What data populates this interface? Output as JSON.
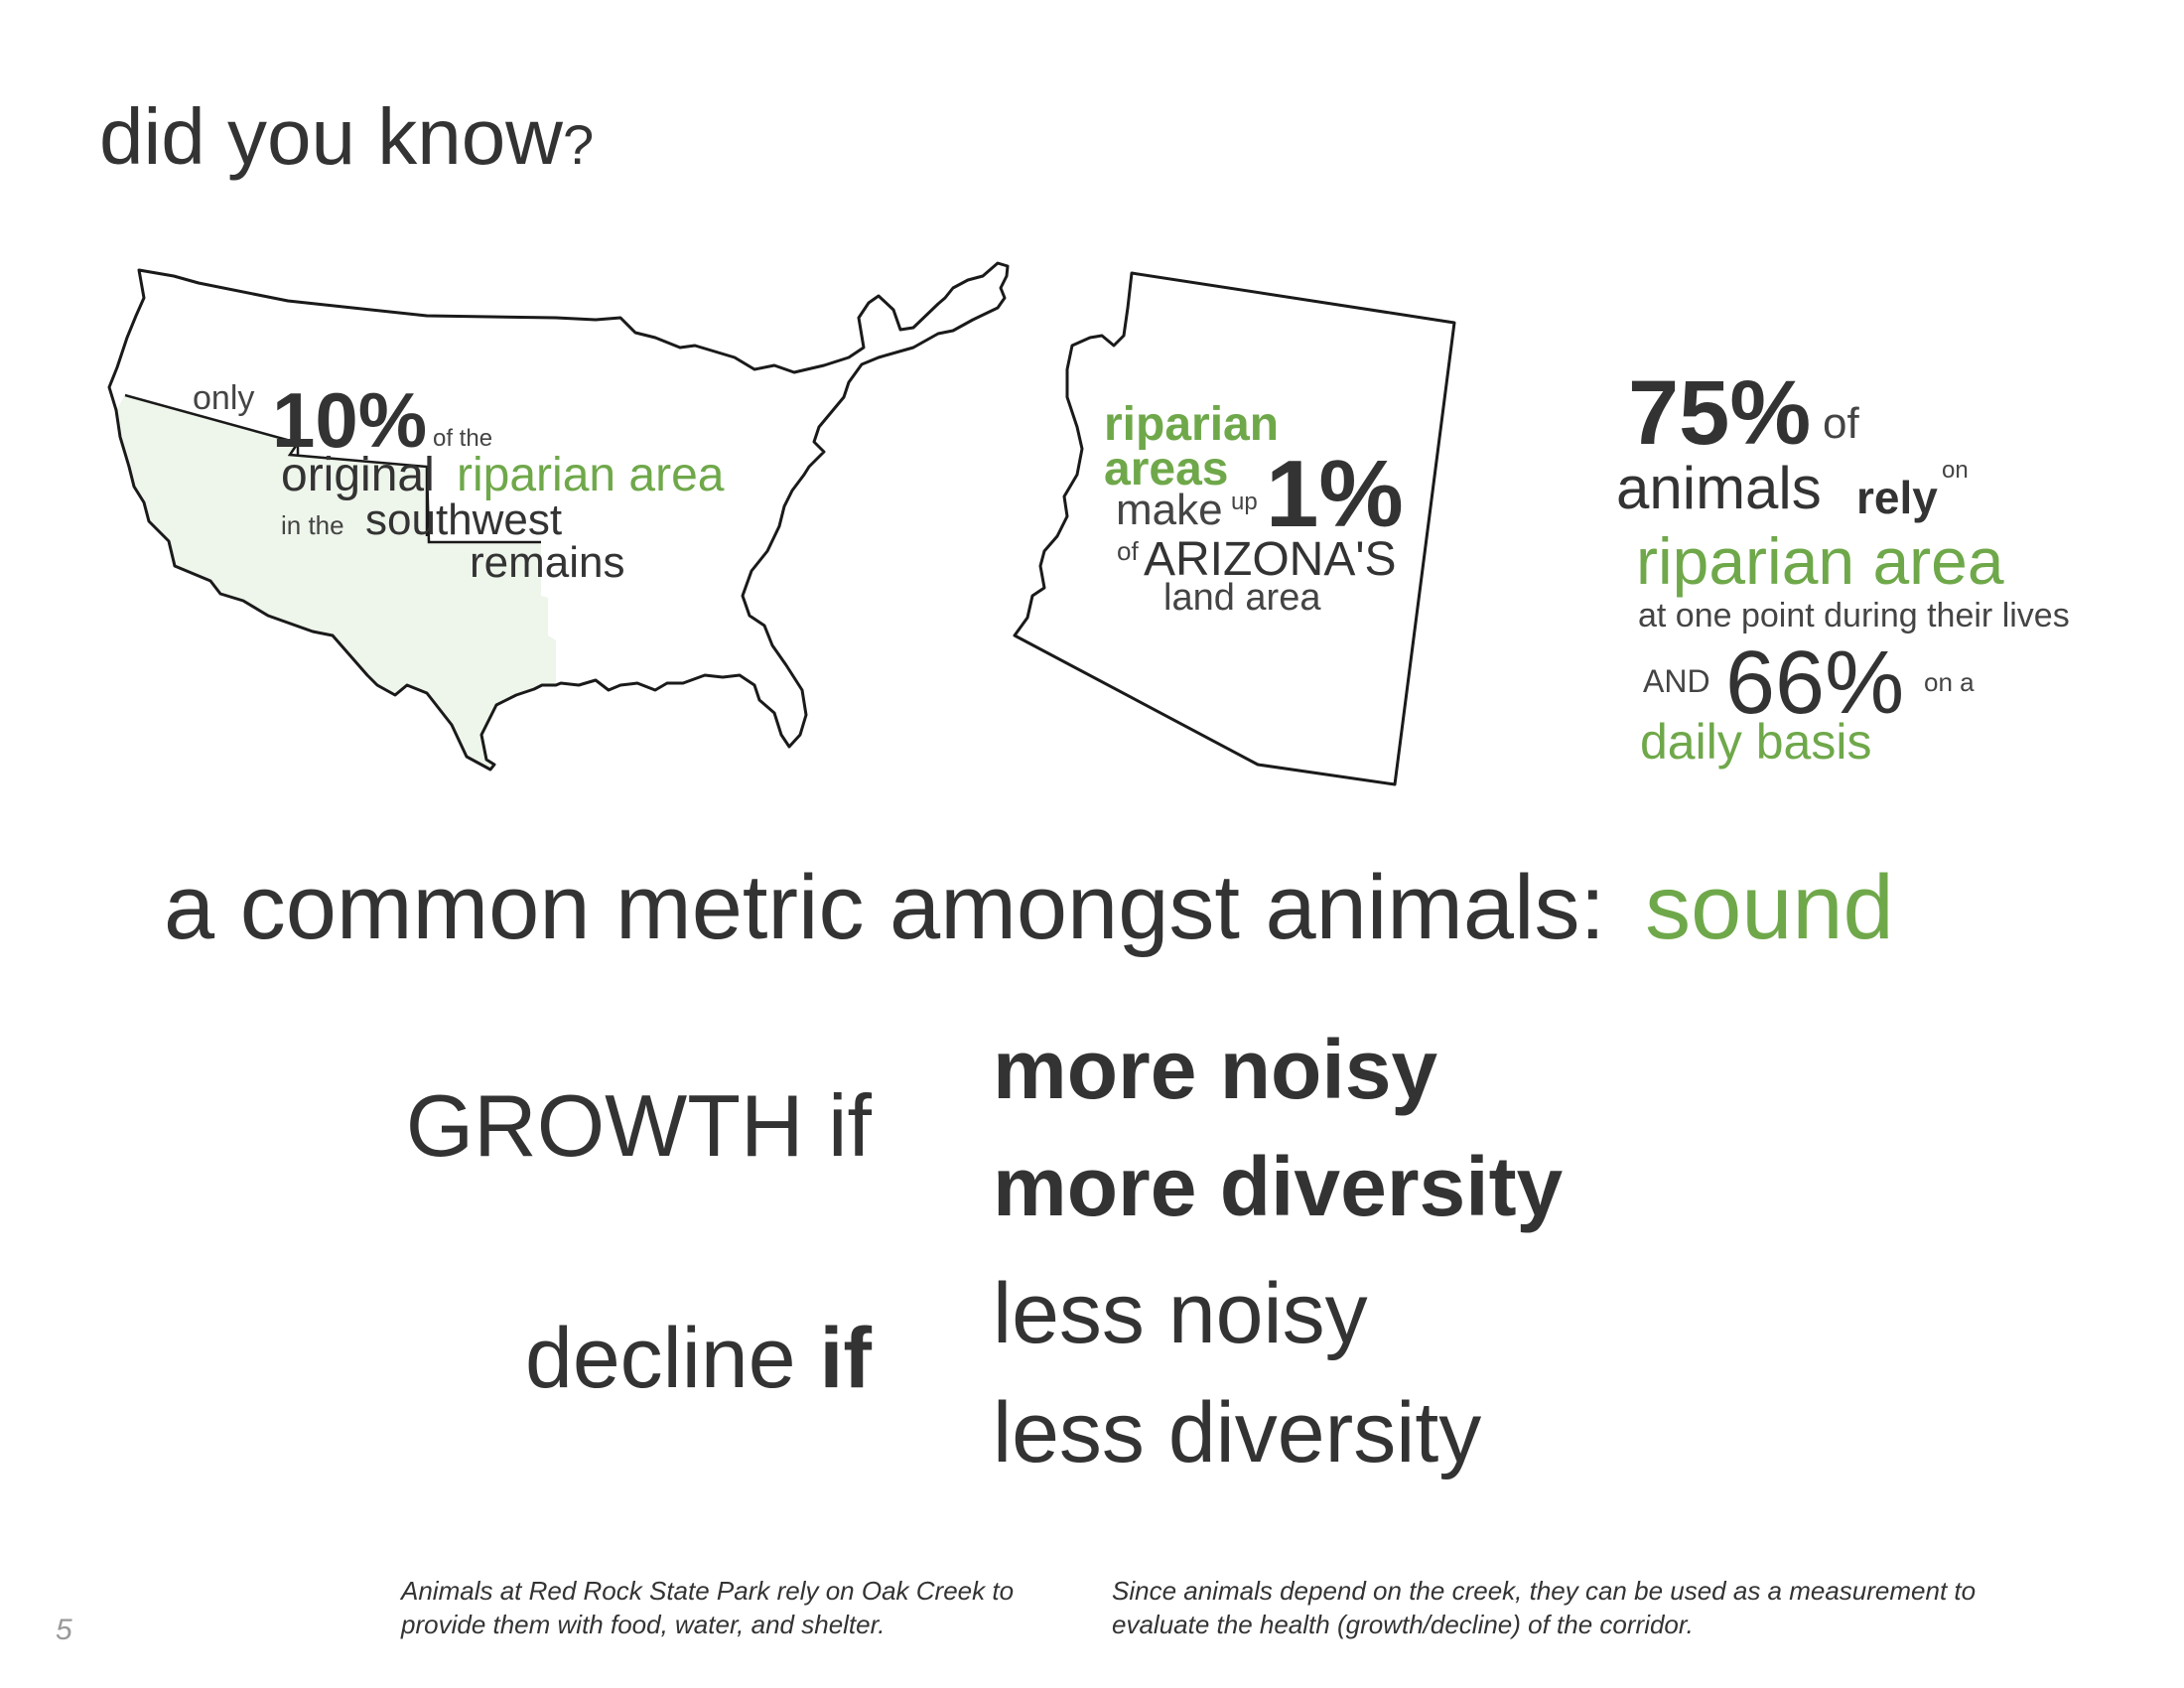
{
  "title": {
    "text": "did you know",
    "mark": "?"
  },
  "us_map": {
    "only": "only",
    "percent": "10%",
    "of_the": "of the",
    "original": "original",
    "riparian_area": "riparian area",
    "in_the": "in the",
    "southwest": "southwest",
    "remains": "remains",
    "colors": {
      "outline": "#1a1a1a",
      "highlight": "#eef5ea"
    }
  },
  "arizona": {
    "riparian": "riparian",
    "areas": "areas",
    "make": "make",
    "up": "up",
    "percent": "1%",
    "of": "of",
    "name": "ARIZONA'S",
    "land_area": "land area"
  },
  "stats": {
    "pct_75": "75%",
    "of": "of",
    "animals": "animals",
    "rely": "rely",
    "on": "on",
    "riparian_area": "riparian area",
    "at_one_point": "at one point during their lives",
    "and": "AND",
    "pct_66": "66%",
    "on_a": "on a",
    "daily_basis": "daily basis"
  },
  "metric": {
    "prefix": "a common metric amongst animals:",
    "highlight": "sound"
  },
  "conditions": {
    "growth_label": "GROWTH if",
    "decline_word": "decline",
    "decline_if": "if",
    "more_noisy": "more noisy",
    "more_diversity": "more diversity",
    "less_noisy": "less noisy",
    "less_diversity": "less diversity"
  },
  "footer": {
    "caption_left": "Animals at Red Rock State Park rely on Oak Creek to provide them with food, water, and shelter.",
    "caption_right": "Since animals depend on the creek, they can be used as a measurement to evaluate the health (growth/decline) of the corridor.",
    "page_number": "5"
  },
  "colors": {
    "text": "#333333",
    "accent_green": "#6fa84a"
  }
}
